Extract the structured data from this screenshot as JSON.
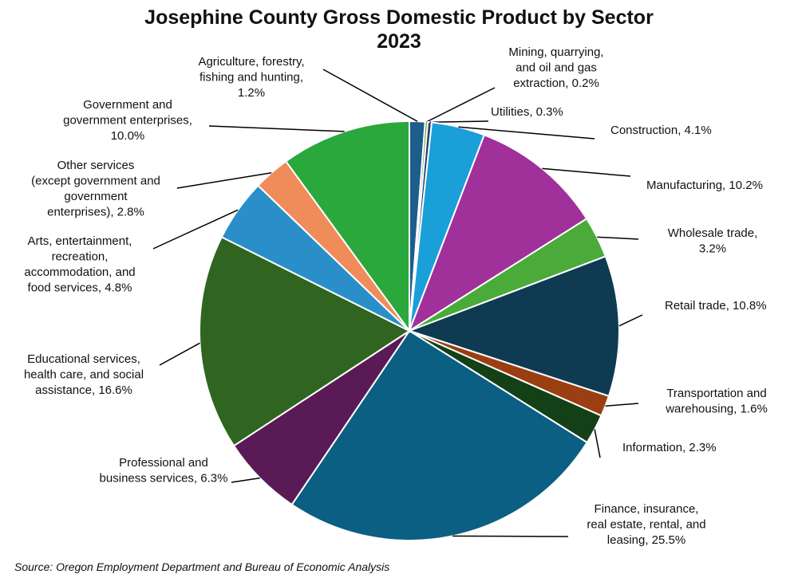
{
  "chart_data": {
    "type": "pie",
    "title": "Josephine County Gross Domestic Product by Sector 2023",
    "categories": [
      "Agriculture, forestry, fishing and hunting, 1.2%",
      "Mining, quarrying, and oil and gas extraction, 0.2%",
      "Utilities, 0.3%",
      "Construction, 4.1%",
      "Manufacturing, 10.2%",
      "Wholesale trade, 3.2%",
      "Retail trade, 10.8%",
      "Transportation and warehousing, 1.6%",
      "Information, 2.3%",
      "Finance, insurance, real estate, rental, and leasing, 25.5%",
      "Professional and business services, 6.3%",
      "Educational services, health care, and social assistance, 16.6%",
      "Arts, entertainment, recreation, accommodation, and food services, 4.8%",
      "Other services (except government and government enterprises), 2.8%",
      "Government and government enterprises, 10.0%"
    ],
    "values": [
      1.2,
      0.2,
      0.3,
      4.1,
      10.2,
      3.2,
      10.8,
      1.6,
      2.3,
      25.5,
      6.3,
      16.6,
      4.8,
      2.8,
      10.0
    ],
    "colors": [
      "#1b5e8c",
      "#6b8e23",
      "#1f3f6f",
      "#1a9fd9",
      "#a0309a",
      "#4aab3a",
      "#0e3a52",
      "#9a3f12",
      "#144018",
      "#0a5f82",
      "#5a1a55",
      "#2f6520",
      "#2a8fc8",
      "#f08c5a",
      "#2aa83c"
    ],
    "source": "Source: Oregon Employment Department and Bureau of Economic Analysis"
  }
}
